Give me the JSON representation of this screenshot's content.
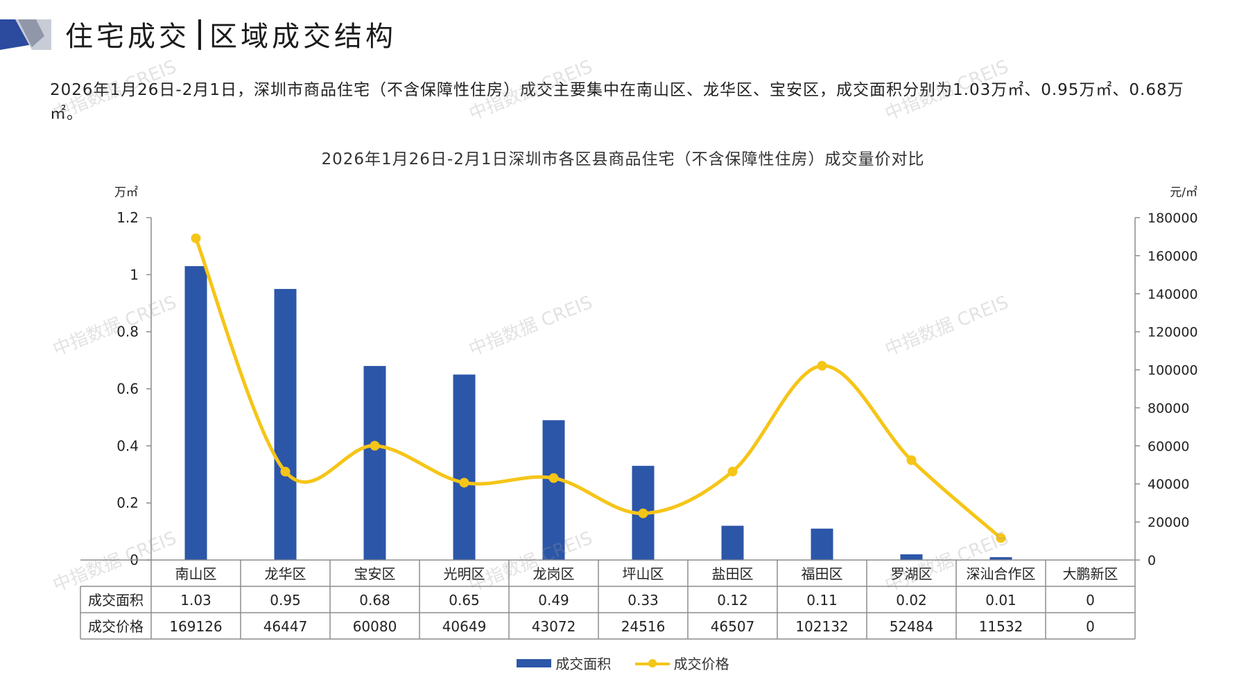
{
  "header": {
    "title_left": "住宅成交",
    "title_right": "区域成交结构"
  },
  "summary": "2026年1月26日-2月1日，深圳市商品住宅（不含保障性住房）成交主要集中在南山区、龙华区、宝安区，成交面积分别为1.03万㎡、0.95万㎡、0.68万㎡。",
  "watermark": "中指数据 CREIS",
  "colors": {
    "bar": "#2c56a8",
    "line": "#f5c518",
    "header_dark": "#2c4a9e",
    "header_light": "#c8ccd6"
  },
  "chart_data": {
    "type": "bar",
    "title": "2026年1月26日-2月1日深圳市各区县商品住宅（不含保障性住房）成交量价对比",
    "categories": [
      "南山区",
      "龙华区",
      "宝安区",
      "光明区",
      "龙岗区",
      "坪山区",
      "盐田区",
      "福田区",
      "罗湖区",
      "深汕合作区",
      "大鹏新区"
    ],
    "y_left": {
      "unit": "万㎡",
      "min": 0,
      "max": 1.2,
      "ticks": [
        "0",
        "0.2",
        "0.4",
        "0.6",
        "0.8",
        "1",
        "1.2"
      ]
    },
    "y_right": {
      "unit": "元/㎡",
      "min": 0,
      "max": 180000,
      "ticks": [
        "0",
        "20000",
        "40000",
        "60000",
        "80000",
        "100000",
        "120000",
        "140000",
        "160000",
        "180000"
      ]
    },
    "series": [
      {
        "name": "成交面积",
        "type": "bar",
        "axis": "left",
        "values": [
          1.03,
          0.95,
          0.68,
          0.65,
          0.49,
          0.33,
          0.12,
          0.11,
          0.02,
          0.01,
          0
        ],
        "labels": [
          "1.03",
          "0.95",
          "0.68",
          "0.65",
          "0.49",
          "0.33",
          "0.12",
          "0.11",
          "0.02",
          "0.01",
          "0"
        ]
      },
      {
        "name": "成交价格",
        "type": "line",
        "axis": "right",
        "values": [
          169126,
          46447,
          60080,
          40649,
          43072,
          24516,
          46507,
          102132,
          52484,
          11532,
          0
        ],
        "labels": [
          "169126",
          "46447",
          "60080",
          "40649",
          "43072",
          "24516",
          "46507",
          "102132",
          "52484",
          "11532",
          "0"
        ]
      }
    ],
    "grid": false,
    "legend": "bottom"
  }
}
